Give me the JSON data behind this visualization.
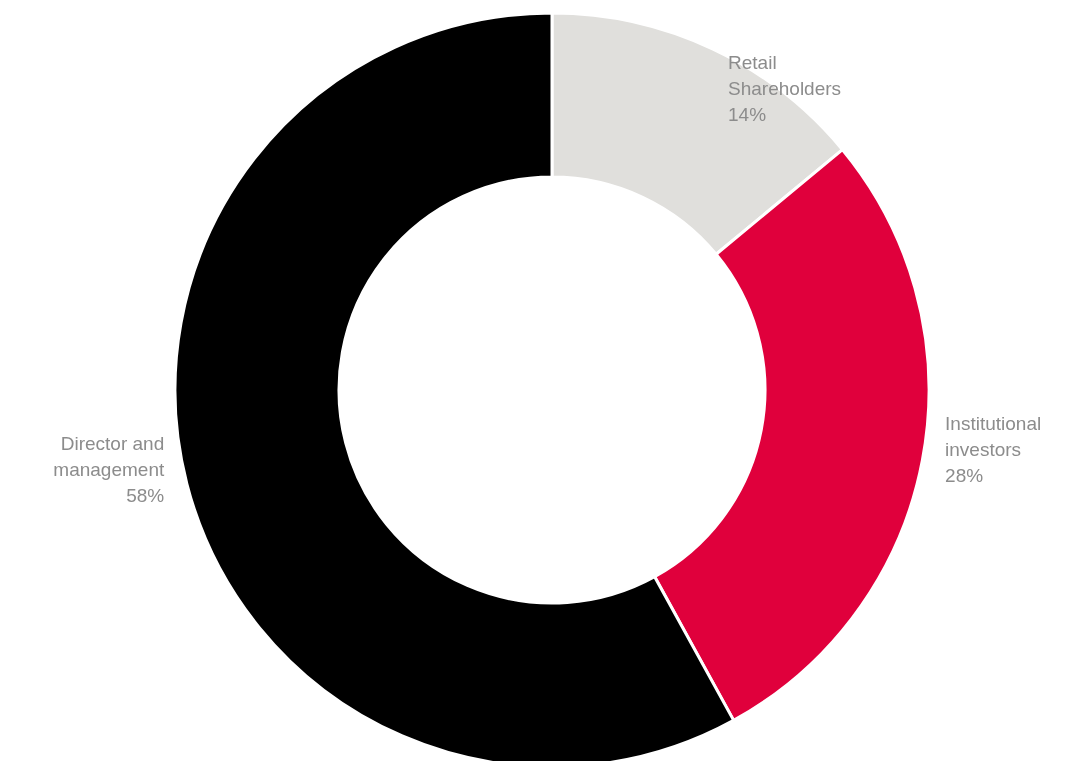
{
  "chart_data": {
    "type": "donut",
    "categories": [
      "Retail Shareholders",
      "Institutional investors",
      "Director and management"
    ],
    "values": [
      14,
      28,
      58
    ],
    "value_labels": [
      "14%",
      "28%",
      "58%"
    ],
    "colors": [
      "#e0dfdc",
      "#e0003c",
      "#000000"
    ]
  }
}
